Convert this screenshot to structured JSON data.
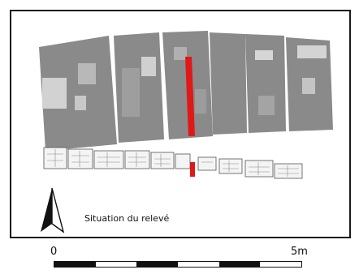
{
  "caption": "Situation du relevé",
  "scale": {
    "start_label": "0",
    "end_label": "5m",
    "segments": 6
  },
  "colors": {
    "block": "#8a8a8a",
    "block_light": "#cfcfcf",
    "highlight": "#e01818",
    "ink": "#111111"
  },
  "icons": {
    "north": "north-arrow-icon"
  }
}
